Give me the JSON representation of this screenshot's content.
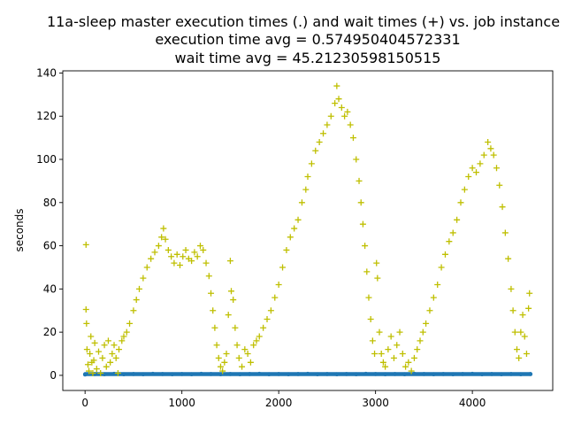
{
  "chart_data": {
    "type": "scatter",
    "title": [
      "11a-sleep master execution times (.) and wait times (+) vs. job instance",
      "execution time avg = 0.574950404572331",
      "wait time avg = 45.21230598150515"
    ],
    "xlabel": "",
    "ylabel": "seconds",
    "xlim": [
      -230,
      4830
    ],
    "ylim": [
      -7,
      141
    ],
    "xticks": [
      0,
      1000,
      2000,
      3000,
      4000
    ],
    "yticks": [
      0,
      20,
      40,
      60,
      80,
      100,
      120,
      140
    ],
    "x_range": [
      0,
      4600
    ],
    "grid": false,
    "legend": "none",
    "series": [
      {
        "marker": ".",
        "color": "#1f77b4",
        "points": [
          [
            0,
            0.4
          ],
          [
            100,
            0.6
          ],
          [
            200,
            0.5
          ],
          [
            300,
            0.7
          ],
          [
            400,
            0.5
          ],
          [
            500,
            0.6
          ],
          [
            600,
            0.5
          ],
          [
            700,
            0.7
          ],
          [
            800,
            0.6
          ],
          [
            900,
            0.5
          ],
          [
            1000,
            0.6
          ],
          [
            1100,
            0.5
          ],
          [
            1200,
            0.7
          ],
          [
            1300,
            0.6
          ],
          [
            1400,
            0.5
          ],
          [
            1500,
            0.6
          ],
          [
            1600,
            0.5
          ],
          [
            1700,
            0.6
          ],
          [
            1800,
            0.7
          ],
          [
            1900,
            0.5
          ],
          [
            2000,
            0.6
          ],
          [
            2100,
            0.5
          ],
          [
            2200,
            0.6
          ],
          [
            2300,
            0.7
          ],
          [
            2400,
            0.5
          ],
          [
            2500,
            0.6
          ],
          [
            2600,
            0.5
          ],
          [
            2700,
            0.6
          ],
          [
            2800,
            0.5
          ],
          [
            2900,
            0.7
          ],
          [
            3000,
            0.6
          ],
          [
            3100,
            0.5
          ],
          [
            3200,
            0.6
          ],
          [
            3300,
            0.5
          ],
          [
            3400,
            0.7
          ],
          [
            3500,
            0.6
          ],
          [
            3600,
            0.5
          ],
          [
            3700,
            0.6
          ],
          [
            3800,
            0.5
          ],
          [
            3900,
            0.6
          ],
          [
            4000,
            0.7
          ],
          [
            4100,
            0.5
          ],
          [
            4200,
            0.6
          ],
          [
            4300,
            0.5
          ],
          [
            4400,
            0.6
          ],
          [
            4500,
            0.5
          ],
          [
            4600,
            0.6
          ]
        ]
      },
      {
        "marker": "+",
        "color": "#bfbf00",
        "points": [
          [
            10,
            60.5
          ],
          [
            10,
            30.5
          ],
          [
            15,
            24
          ],
          [
            20,
            12
          ],
          [
            30,
            5
          ],
          [
            40,
            2
          ],
          [
            50,
            10
          ],
          [
            60,
            18
          ],
          [
            70,
            6
          ],
          [
            80,
            1
          ],
          [
            90,
            7
          ],
          [
            100,
            15
          ],
          [
            120,
            3
          ],
          [
            140,
            11
          ],
          [
            160,
            1
          ],
          [
            180,
            8
          ],
          [
            200,
            14
          ],
          [
            220,
            4
          ],
          [
            240,
            16
          ],
          [
            260,
            6
          ],
          [
            280,
            10
          ],
          [
            300,
            14
          ],
          [
            320,
            8
          ],
          [
            340,
            1
          ],
          [
            350,
            12
          ],
          [
            380,
            16
          ],
          [
            400,
            18
          ],
          [
            430,
            20
          ],
          [
            460,
            24
          ],
          [
            500,
            30
          ],
          [
            530,
            35
          ],
          [
            560,
            40
          ],
          [
            600,
            45
          ],
          [
            640,
            50
          ],
          [
            680,
            54
          ],
          [
            720,
            57
          ],
          [
            760,
            60
          ],
          [
            790,
            64
          ],
          [
            810,
            68
          ],
          [
            830,
            63
          ],
          [
            860,
            58
          ],
          [
            890,
            55
          ],
          [
            920,
            52
          ],
          [
            950,
            56
          ],
          [
            980,
            51
          ],
          [
            1010,
            55
          ],
          [
            1040,
            58
          ],
          [
            1070,
            54
          ],
          [
            1100,
            53
          ],
          [
            1130,
            57
          ],
          [
            1160,
            55
          ],
          [
            1190,
            60
          ],
          [
            1220,
            58
          ],
          [
            1250,
            52
          ],
          [
            1280,
            46
          ],
          [
            1300,
            38
          ],
          [
            1320,
            30
          ],
          [
            1340,
            22
          ],
          [
            1360,
            14
          ],
          [
            1380,
            8
          ],
          [
            1400,
            4
          ],
          [
            1420,
            2
          ],
          [
            1440,
            6
          ],
          [
            1460,
            10
          ],
          [
            1480,
            28
          ],
          [
            1500,
            53
          ],
          [
            1510,
            39
          ],
          [
            1530,
            35
          ],
          [
            1550,
            22
          ],
          [
            1570,
            14
          ],
          [
            1590,
            8
          ],
          [
            1620,
            4
          ],
          [
            1650,
            12
          ],
          [
            1680,
            10
          ],
          [
            1710,
            6
          ],
          [
            1740,
            14
          ],
          [
            1770,
            16
          ],
          [
            1800,
            18
          ],
          [
            1840,
            22
          ],
          [
            1880,
            26
          ],
          [
            1920,
            30
          ],
          [
            1960,
            36
          ],
          [
            2000,
            42
          ],
          [
            2040,
            50
          ],
          [
            2080,
            58
          ],
          [
            2120,
            64
          ],
          [
            2160,
            68
          ],
          [
            2200,
            72
          ],
          [
            2240,
            80
          ],
          [
            2280,
            86
          ],
          [
            2300,
            92
          ],
          [
            2340,
            98
          ],
          [
            2380,
            104
          ],
          [
            2420,
            108
          ],
          [
            2460,
            112
          ],
          [
            2500,
            116
          ],
          [
            2540,
            120
          ],
          [
            2580,
            126
          ],
          [
            2600,
            134
          ],
          [
            2620,
            128
          ],
          [
            2650,
            124
          ],
          [
            2680,
            120
          ],
          [
            2710,
            122
          ],
          [
            2740,
            116
          ],
          [
            2770,
            110
          ],
          [
            2800,
            100
          ],
          [
            2830,
            90
          ],
          [
            2850,
            80
          ],
          [
            2870,
            70
          ],
          [
            2890,
            60
          ],
          [
            2910,
            48
          ],
          [
            2930,
            36
          ],
          [
            2950,
            26
          ],
          [
            2970,
            16
          ],
          [
            2990,
            10
          ],
          [
            3010,
            52
          ],
          [
            3020,
            45
          ],
          [
            3040,
            20
          ],
          [
            3060,
            10
          ],
          [
            3080,
            6
          ],
          [
            3100,
            4
          ],
          [
            3130,
            12
          ],
          [
            3160,
            18
          ],
          [
            3190,
            8
          ],
          [
            3220,
            14
          ],
          [
            3250,
            20
          ],
          [
            3280,
            10
          ],
          [
            3310,
            4
          ],
          [
            3340,
            6
          ],
          [
            3370,
            2
          ],
          [
            3400,
            8
          ],
          [
            3430,
            12
          ],
          [
            3460,
            16
          ],
          [
            3490,
            20
          ],
          [
            3520,
            24
          ],
          [
            3560,
            30
          ],
          [
            3600,
            36
          ],
          [
            3640,
            42
          ],
          [
            3680,
            50
          ],
          [
            3720,
            56
          ],
          [
            3760,
            62
          ],
          [
            3800,
            66
          ],
          [
            3840,
            72
          ],
          [
            3880,
            80
          ],
          [
            3920,
            86
          ],
          [
            3960,
            92
          ],
          [
            4000,
            96
          ],
          [
            4040,
            94
          ],
          [
            4080,
            98
          ],
          [
            4120,
            102
          ],
          [
            4160,
            108
          ],
          [
            4190,
            105
          ],
          [
            4220,
            102
          ],
          [
            4250,
            96
          ],
          [
            4280,
            88
          ],
          [
            4310,
            78
          ],
          [
            4340,
            66
          ],
          [
            4370,
            54
          ],
          [
            4400,
            40
          ],
          [
            4420,
            30
          ],
          [
            4440,
            20
          ],
          [
            4460,
            12
          ],
          [
            4480,
            8
          ],
          [
            4500,
            20
          ],
          [
            4520,
            28
          ],
          [
            4540,
            18
          ],
          [
            4560,
            10
          ],
          [
            4580,
            31
          ],
          [
            4590,
            38
          ]
        ]
      }
    ]
  }
}
